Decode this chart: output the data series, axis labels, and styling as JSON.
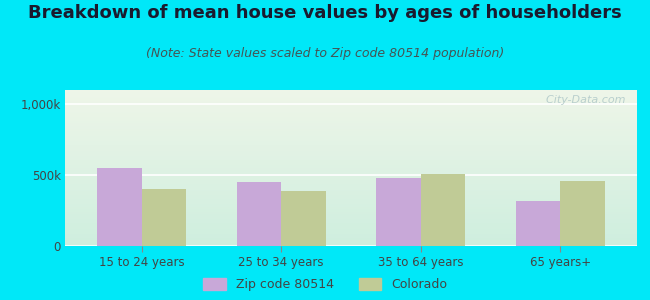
{
  "title": "Breakdown of mean house values by ages of householders",
  "subtitle": "(Note: State values scaled to Zip code 80514 population)",
  "categories": [
    "15 to 24 years",
    "25 to 34 years",
    "35 to 64 years",
    "65 years+"
  ],
  "zip_values": [
    550000,
    450000,
    480000,
    320000
  ],
  "state_values": [
    400000,
    385000,
    510000,
    460000
  ],
  "zip_color": "#c8a8d8",
  "state_color": "#c0cb96",
  "background_outer": "#00e8f8",
  "grad_top": "#ceeede",
  "grad_bottom": "#eef5e8",
  "ylim": [
    0,
    1100000
  ],
  "yticks": [
    0,
    500000,
    1000000
  ],
  "ytick_labels": [
    "0",
    "500k",
    "1,000k"
  ],
  "legend_labels": [
    "Zip code 80514",
    "Colorado"
  ],
  "bar_width": 0.32,
  "title_fontsize": 13,
  "subtitle_fontsize": 9,
  "watermark": "  City-Data.com"
}
